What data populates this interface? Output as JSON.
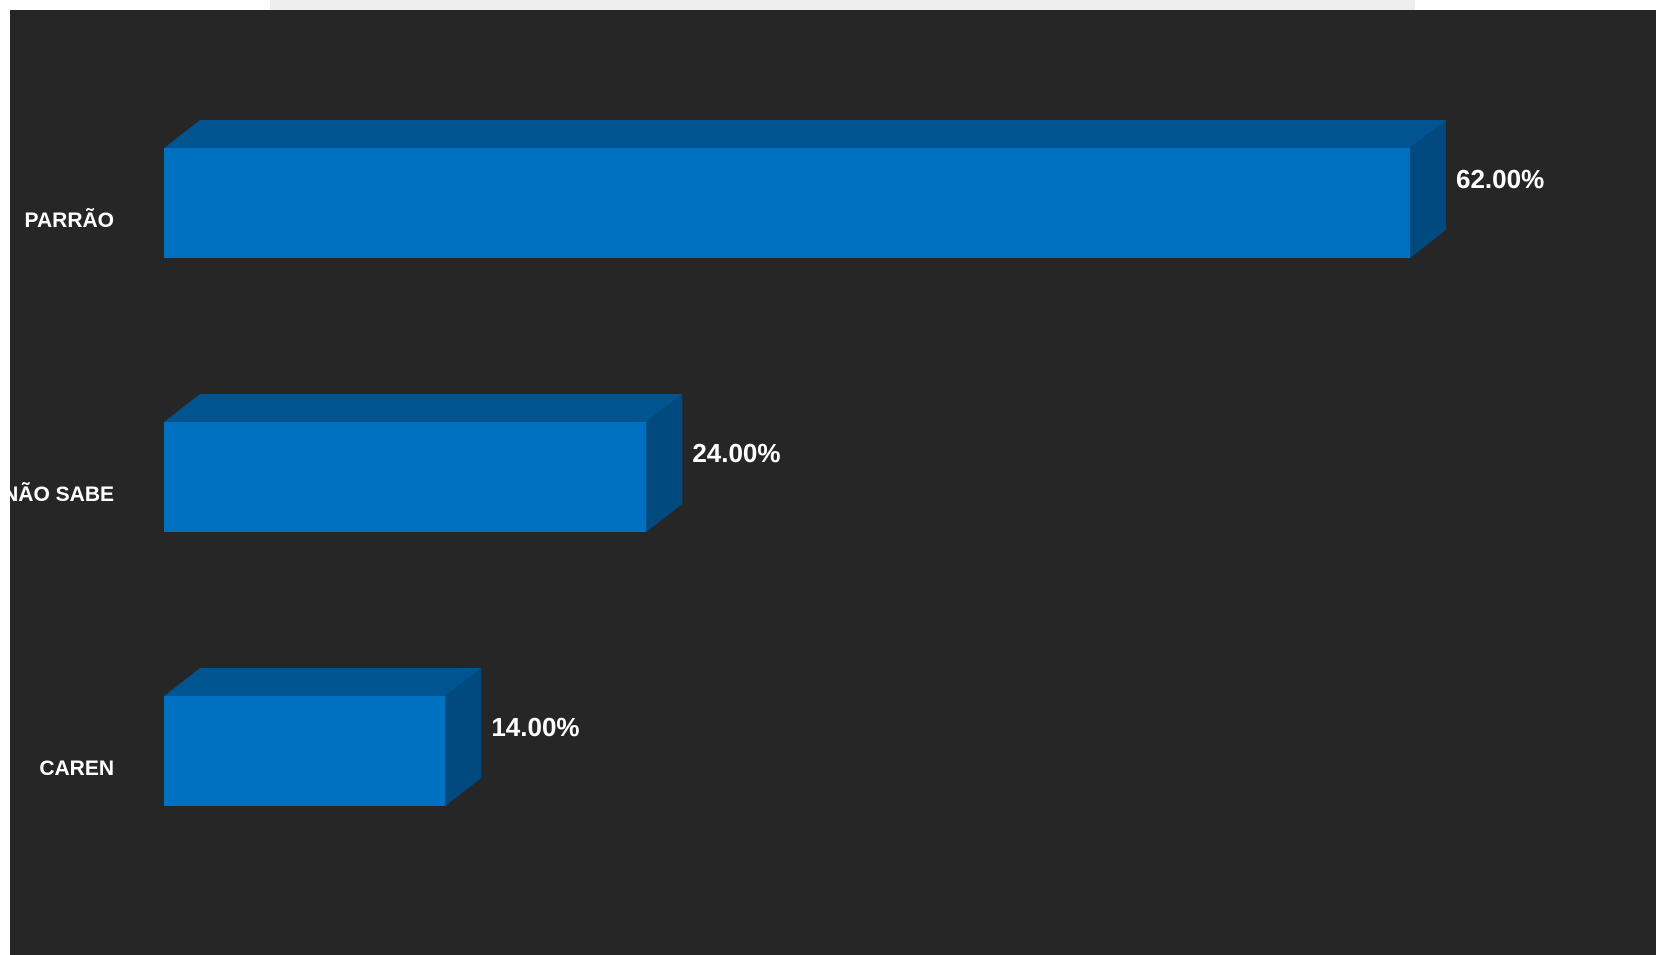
{
  "chart_data": {
    "type": "bar",
    "orientation": "horizontal",
    "style": "3d",
    "categories": [
      "PARRÃO",
      "NÃO SABE",
      "CAREN"
    ],
    "values": [
      62.0,
      24.0,
      14.0
    ],
    "value_labels": [
      "62.00%",
      "24.00%",
      "14.00%"
    ],
    "unit": "%",
    "xlim": [
      0,
      62
    ],
    "grid": false,
    "legend": "none"
  },
  "colors": {
    "background": "#262626",
    "bar_front": "#0070C0",
    "bar_top": "#00548F",
    "bar_side": "#004A80",
    "text": "#ffffff"
  }
}
